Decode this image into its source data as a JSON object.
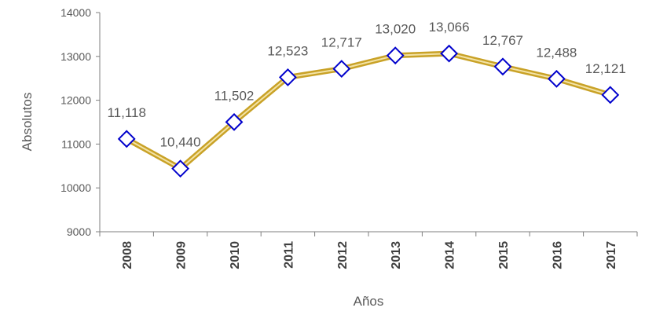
{
  "chart_data": {
    "type": "line",
    "title": "",
    "xlabel": "Años",
    "ylabel": "Absolutos",
    "categories": [
      "2008",
      "2009",
      "2010",
      "2011",
      "2012",
      "2013",
      "2014",
      "2015",
      "2016",
      "2017"
    ],
    "series": [
      {
        "values": [
          11118,
          10440,
          11502,
          12523,
          12717,
          13020,
          13066,
          12767,
          12488,
          12121
        ],
        "data_labels": [
          "11,118",
          "10,440",
          "11,502",
          "12,523",
          "12,717",
          "13,020",
          "13,066",
          "12,767",
          "12,488",
          "12,121"
        ]
      }
    ],
    "ylim": [
      9000,
      14000
    ],
    "yticks": [
      "9000",
      "10000",
      "11000",
      "12000",
      "13000",
      "14000"
    ],
    "grid": false,
    "legend": "none",
    "colors": {
      "line": "#C9A227",
      "line_highlight": "#F3E3A6",
      "marker_edge": "#0000CC",
      "marker_fill": "#FFFFFF",
      "axis": "#7F7F7F",
      "text": "#595959",
      "category_text": "#404040"
    },
    "marker": "diamond-icon"
  }
}
